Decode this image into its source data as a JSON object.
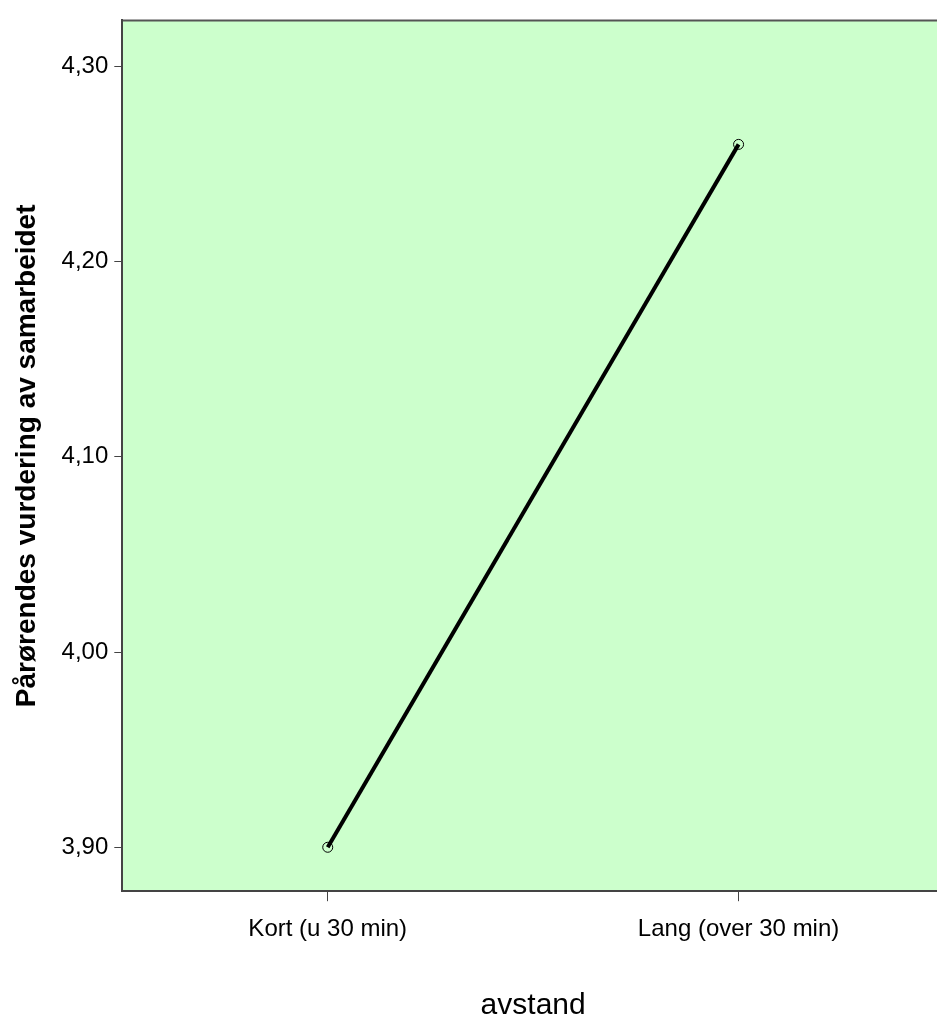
{
  "chart_data": {
    "type": "line",
    "xlabel": "avstand",
    "ylabel": "Pårørendes vurdering av samarbeidet",
    "categories": [
      "Kort (u 30 min)",
      "Lang (over 30 min)"
    ],
    "series": [
      {
        "color": "#000000",
        "values": [
          3.9,
          4.26
        ]
      }
    ],
    "ylim": [
      3.8775,
      4.3235
    ],
    "yticks": [
      {
        "value": 3.9,
        "label": "3,90"
      },
      {
        "value": 4.0,
        "label": "4,00"
      },
      {
        "value": 4.1,
        "label": "4,10"
      },
      {
        "value": 4.2,
        "label": "4,20"
      },
      {
        "value": 4.3,
        "label": "4,30"
      }
    ],
    "marker": "circle",
    "line_style": "solid",
    "grid": false,
    "legend": false
  }
}
